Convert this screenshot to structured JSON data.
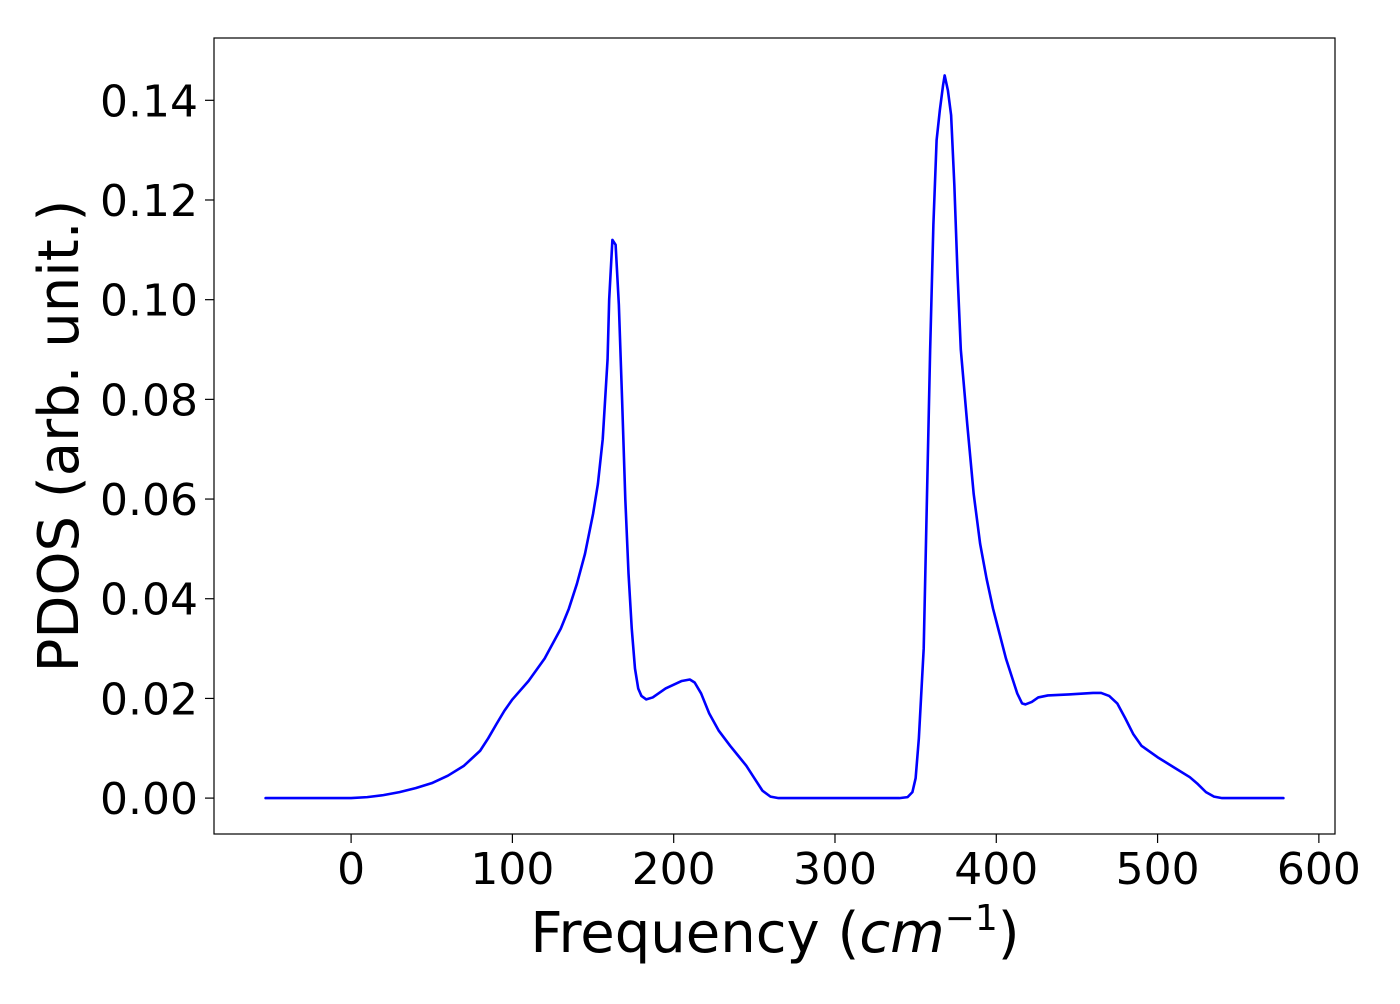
{
  "chart_data": {
    "type": "line",
    "title": "",
    "xlabel": "Frequency",
    "xlabel_unit_base": "cm",
    "xlabel_unit_exp": "−1",
    "ylabel": "PDOS (arb. unit.)",
    "xlim": [
      -85,
      610
    ],
    "ylim": [
      -0.0072,
      0.1525
    ],
    "xticks": [
      0,
      100,
      200,
      300,
      400,
      500,
      600
    ],
    "xtick_labels": [
      "0",
      "100",
      "200",
      "300",
      "400",
      "500",
      "600"
    ],
    "yticks": [
      0.0,
      0.02,
      0.04,
      0.06,
      0.08,
      0.1,
      0.12,
      0.14
    ],
    "ytick_labels": [
      "0.00",
      "0.02",
      "0.04",
      "0.06",
      "0.08",
      "0.10",
      "0.12",
      "0.14"
    ],
    "grid": false,
    "legend": "none",
    "series": [
      {
        "color": "#0000ff",
        "points": [
          [
            -53,
            0.0
          ],
          [
            -20,
            0.0
          ],
          [
            0,
            0.0
          ],
          [
            10,
            0.0002
          ],
          [
            20,
            0.0006
          ],
          [
            30,
            0.0012
          ],
          [
            40,
            0.002
          ],
          [
            50,
            0.003
          ],
          [
            60,
            0.0045
          ],
          [
            70,
            0.0065
          ],
          [
            80,
            0.0095
          ],
          [
            85,
            0.012
          ],
          [
            90,
            0.0148
          ],
          [
            95,
            0.0175
          ],
          [
            100,
            0.0198
          ],
          [
            110,
            0.0235
          ],
          [
            120,
            0.028
          ],
          [
            130,
            0.034
          ],
          [
            135,
            0.038
          ],
          [
            140,
            0.043
          ],
          [
            145,
            0.049
          ],
          [
            150,
            0.057
          ],
          [
            153,
            0.063
          ],
          [
            156,
            0.072
          ],
          [
            159,
            0.088
          ],
          [
            160,
            0.1
          ],
          [
            162,
            0.112
          ],
          [
            164,
            0.111
          ],
          [
            166,
            0.099
          ],
          [
            168,
            0.08
          ],
          [
            170,
            0.06
          ],
          [
            172,
            0.045
          ],
          [
            174,
            0.034
          ],
          [
            176,
            0.026
          ],
          [
            178,
            0.022
          ],
          [
            180,
            0.0205
          ],
          [
            183,
            0.0198
          ],
          [
            187,
            0.0202
          ],
          [
            195,
            0.022
          ],
          [
            205,
            0.0235
          ],
          [
            210,
            0.0238
          ],
          [
            213,
            0.0232
          ],
          [
            217,
            0.021
          ],
          [
            222,
            0.017
          ],
          [
            228,
            0.0135
          ],
          [
            235,
            0.0105
          ],
          [
            240,
            0.0085
          ],
          [
            245,
            0.0065
          ],
          [
            250,
            0.004
          ],
          [
            255,
            0.0015
          ],
          [
            260,
            0.0003
          ],
          [
            265,
            0.0
          ],
          [
            300,
            0.0
          ],
          [
            340,
            0.0
          ],
          [
            345,
            0.0002
          ],
          [
            348,
            0.0012
          ],
          [
            350,
            0.004
          ],
          [
            352,
            0.012
          ],
          [
            355,
            0.03
          ],
          [
            357,
            0.06
          ],
          [
            359,
            0.09
          ],
          [
            361,
            0.115
          ],
          [
            363,
            0.132
          ],
          [
            365,
            0.138
          ],
          [
            367,
            0.143
          ],
          [
            368,
            0.145
          ],
          [
            370,
            0.142
          ],
          [
            372,
            0.137
          ],
          [
            374,
            0.123
          ],
          [
            376,
            0.105
          ],
          [
            378,
            0.09
          ],
          [
            382,
            0.075
          ],
          [
            386,
            0.061
          ],
          [
            390,
            0.051
          ],
          [
            394,
            0.044
          ],
          [
            398,
            0.038
          ],
          [
            402,
            0.033
          ],
          [
            406,
            0.028
          ],
          [
            410,
            0.024
          ],
          [
            413,
            0.021
          ],
          [
            416,
            0.019
          ],
          [
            418,
            0.0188
          ],
          [
            422,
            0.0193
          ],
          [
            426,
            0.0202
          ],
          [
            432,
            0.0206
          ],
          [
            445,
            0.0208
          ],
          [
            460,
            0.0211
          ],
          [
            465,
            0.0211
          ],
          [
            470,
            0.0205
          ],
          [
            475,
            0.019
          ],
          [
            480,
            0.016
          ],
          [
            485,
            0.0128
          ],
          [
            490,
            0.0105
          ],
          [
            500,
            0.0082
          ],
          [
            510,
            0.0062
          ],
          [
            520,
            0.0042
          ],
          [
            525,
            0.0028
          ],
          [
            530,
            0.0012
          ],
          [
            535,
            0.0003
          ],
          [
            540,
            0.0
          ],
          [
            578,
            0.0
          ]
        ]
      }
    ]
  }
}
